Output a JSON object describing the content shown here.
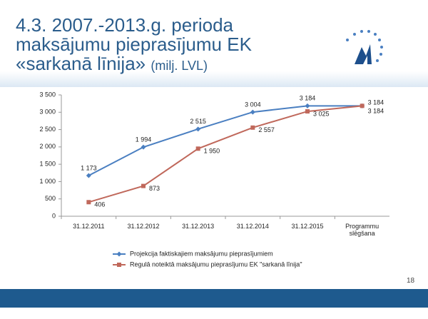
{
  "chart_data": {
    "type": "line",
    "title": "4.3. 2007.-2013.g. perioda maksājumu pieprasījumu EK «sarkanā līnija»",
    "unit": "(milj. LVL)",
    "categories": [
      "31.12.2011",
      "31.12.2012",
      "31.12.2013",
      "31.12.2014",
      "31.12.2015",
      "Programmu slēgšana"
    ],
    "series": [
      {
        "name": "Projekcija faktiskajiem maksājumu pieprasījumiem",
        "color": "#4a7fc1",
        "marker": "diamond",
        "values": [
          1173,
          1994,
          2515,
          3004,
          3184,
          3184
        ],
        "value_labels": [
          "1 173",
          "1 994",
          "2 515",
          "3 004",
          "3 184",
          "3 184"
        ]
      },
      {
        "name": "Regulā noteiktā maksājumu pieprasījumu EK \"sarkanā līnija\"",
        "color": "#c0685b",
        "marker": "square",
        "values": [
          406,
          873,
          1950,
          2557,
          3025,
          3184
        ],
        "value_labels": [
          "406",
          "873",
          "1 950",
          "2 557",
          "3 025",
          "3 184"
        ]
      }
    ],
    "ylim": [
      0,
      3500
    ],
    "yticks": [
      0,
      500,
      {
        "value": 1000,
        "label": "1 000"
      },
      {
        "value": 1500,
        "label": "1 500"
      },
      {
        "value": 2000,
        "label": "2 000"
      },
      {
        "value": 2500,
        "label": "2 500"
      },
      {
        "value": 3000,
        "label": "3 000"
      },
      {
        "value": 3500,
        "label": "3 500"
      }
    ],
    "grid": false,
    "legend": "bottom",
    "page_number": "18"
  }
}
